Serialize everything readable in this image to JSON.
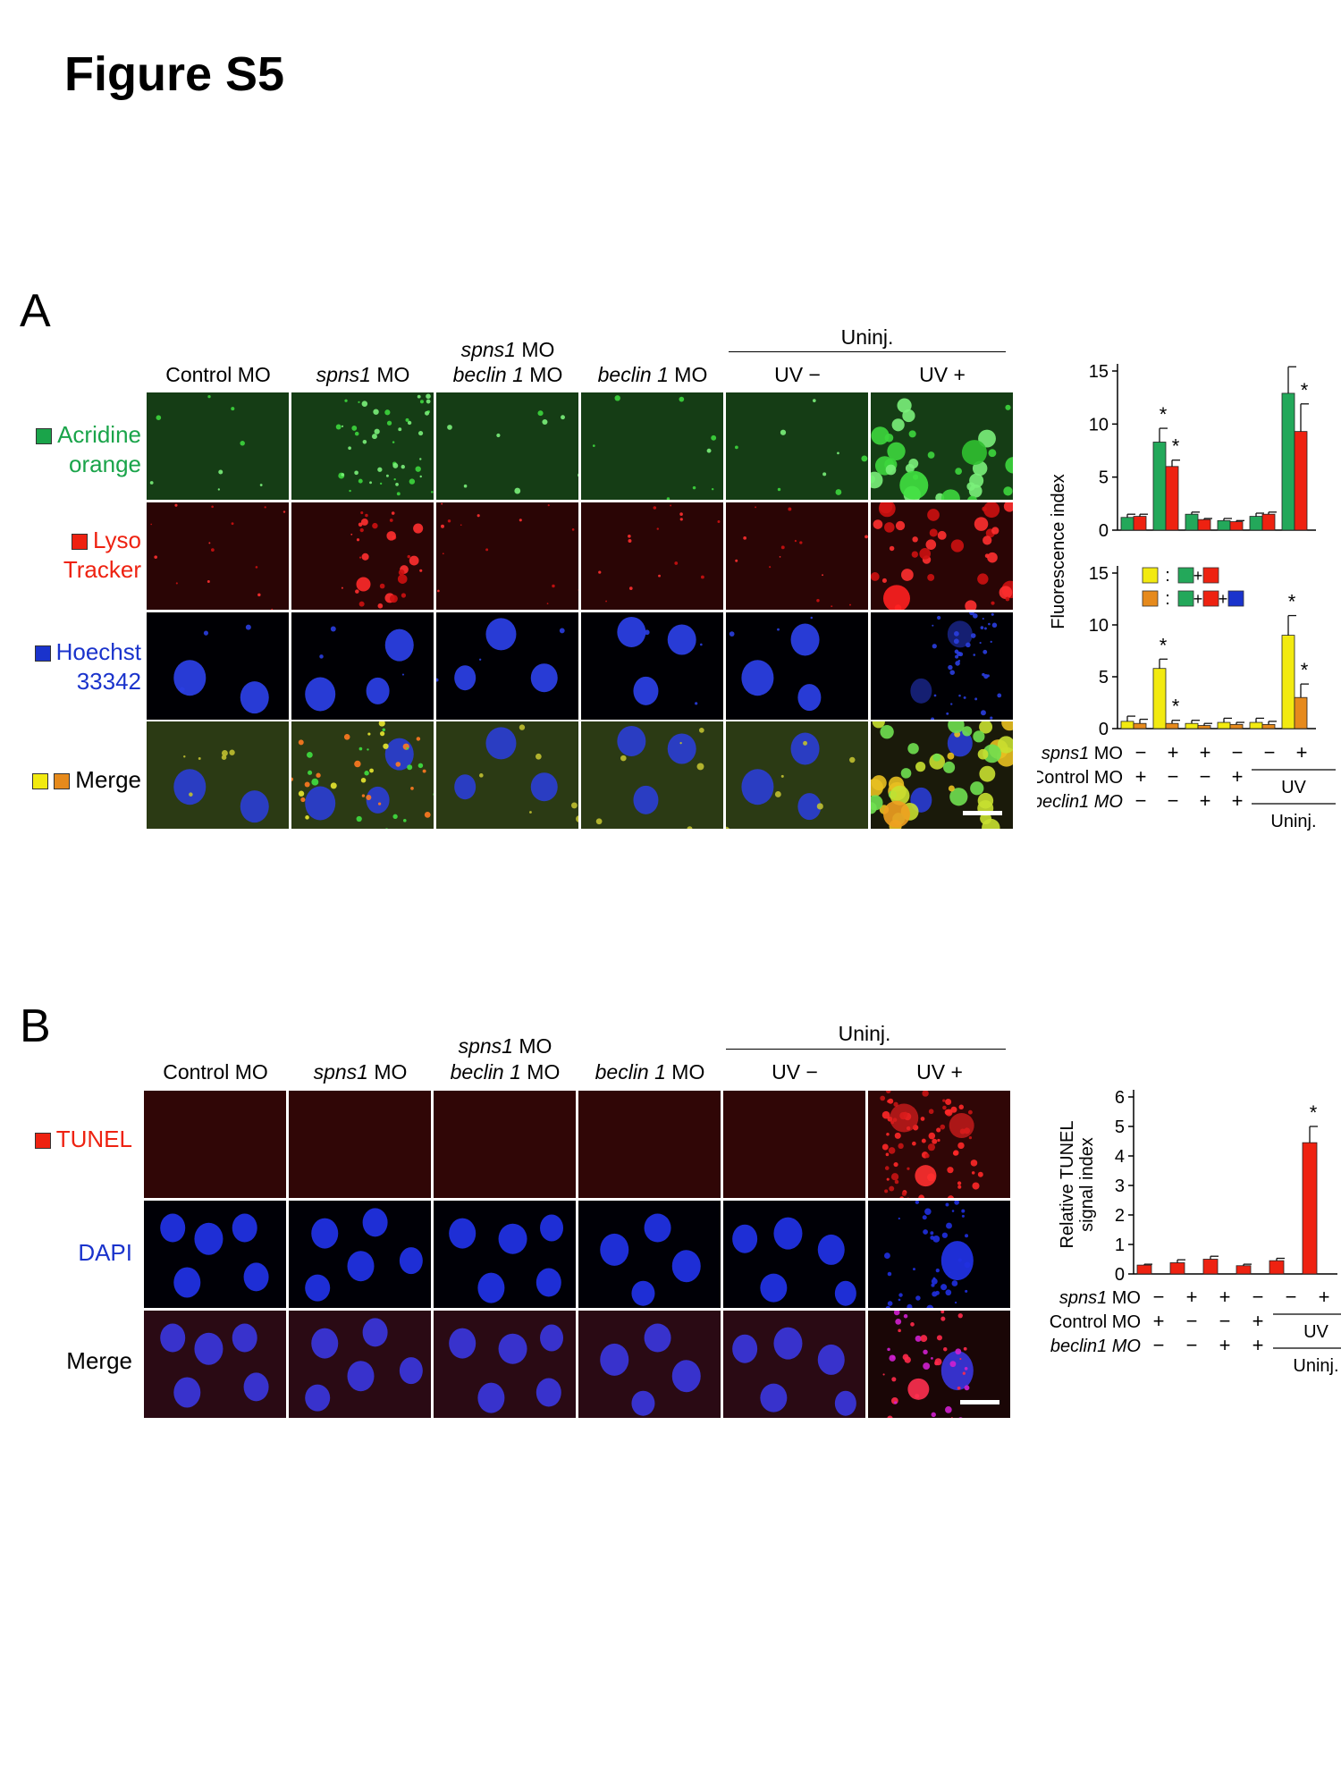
{
  "figure_title": "Figure S5",
  "colors": {
    "green": "#1aa44a",
    "red": "#ee2211",
    "blue": "#1a33cc",
    "yellow": "#f2ea10",
    "orange": "#e68a1c",
    "bar_green": "#23a85a"
  },
  "panelA": {
    "letter": "A",
    "uninj_label": "Uninj.",
    "columns": [
      {
        "l1": "",
        "l2a": "",
        "l2b": "Control MO"
      },
      {
        "l1": "",
        "l2a": "spns1",
        "l2b": " MO"
      },
      {
        "l1": "spns1 MO",
        "l2a": "beclin 1",
        "l2b": " MO"
      },
      {
        "l1": "",
        "l2a": "beclin 1",
        "l2b": " MO"
      },
      {
        "l1": "",
        "l2a": "",
        "l2b": "UV −"
      },
      {
        "l1": "",
        "l2a": "",
        "l2b": "UV +"
      }
    ],
    "rows": [
      {
        "line1": "Acridine",
        "line2": "orange"
      },
      {
        "line1": "Lyso",
        "line2": "Tracker"
      },
      {
        "line1": "Hoechst",
        "line2": "33342"
      },
      {
        "line1": "Merge",
        "line2": ""
      }
    ]
  },
  "panelB": {
    "letter": "B",
    "uninj_label": "Uninj.",
    "columns": [
      {
        "l1": "",
        "l2a": "",
        "l2b": "Control MO"
      },
      {
        "l1": "",
        "l2a": "spns1",
        "l2b": " MO"
      },
      {
        "l1": "spns1 MO",
        "l2a": "beclin 1",
        "l2b": " MO"
      },
      {
        "l1": "",
        "l2a": "beclin 1",
        "l2b": " MO"
      },
      {
        "l1": "",
        "l2a": "",
        "l2b": "UV −"
      },
      {
        "l1": "",
        "l2a": "",
        "l2b": "UV +"
      }
    ],
    "rows": [
      {
        "label": "TUNEL"
      },
      {
        "label": "DAPI"
      },
      {
        "label": "Merge"
      }
    ]
  },
  "chart_data": [
    {
      "type": "bar",
      "title": "",
      "ylabel": "Fluorescence index",
      "ylim": [
        0,
        15
      ],
      "yticks": [
        0,
        5,
        10,
        15
      ],
      "series": [
        {
          "name": "Acridine orange",
          "color": "#23a85a",
          "values": [
            1.2,
            8.3,
            1.5,
            0.9,
            1.3,
            12.9
          ],
          "errors": [
            0.3,
            1.3,
            0.2,
            0.2,
            0.3,
            2.5
          ]
        },
        {
          "name": "LysoTracker",
          "color": "#ee2211",
          "values": [
            1.3,
            6.0,
            1.0,
            0.8,
            1.5,
            9.3
          ],
          "errors": [
            0.2,
            0.6,
            0.1,
            0.1,
            0.2,
            2.6
          ]
        }
      ],
      "significance": [
        false,
        true,
        false,
        false,
        false,
        true
      ]
    },
    {
      "type": "bar",
      "title": "",
      "ylabel": "Fluorescence index",
      "ylim": [
        0,
        15
      ],
      "yticks": [
        0,
        5,
        10,
        15
      ],
      "legend": [
        {
          "sep": ":",
          "swatches": [
            "#23a85a",
            "#ee2211"
          ]
        },
        {
          "sep": ":",
          "swatches": [
            "#23a85a",
            "#ee2211",
            "#1a33cc"
          ]
        }
      ],
      "series": [
        {
          "name": "Acridine orange + LysoTracker",
          "color": "#f2ea10",
          "values": [
            0.7,
            5.8,
            0.5,
            0.6,
            0.6,
            9.0
          ],
          "errors": [
            0.5,
            0.9,
            0.3,
            0.4,
            0.4,
            1.9
          ]
        },
        {
          "name": "Acridine orange + LysoTracker + Hoechst",
          "color": "#e68a1c",
          "values": [
            0.5,
            0.5,
            0.3,
            0.4,
            0.4,
            3.0
          ],
          "errors": [
            0.4,
            0.3,
            0.2,
            0.2,
            0.3,
            1.3
          ]
        }
      ],
      "significance": [
        false,
        true,
        false,
        false,
        false,
        true
      ]
    },
    {
      "type": "bar",
      "title": "",
      "ylabel": "Relative TUNEL signal index",
      "ylim": [
        0,
        6
      ],
      "yticks": [
        0,
        1,
        2,
        3,
        4,
        5,
        6
      ],
      "series": [
        {
          "name": "TUNEL",
          "color": "#ee2211",
          "values": [
            0.3,
            0.38,
            0.5,
            0.28,
            0.45,
            4.45
          ],
          "errors": [
            0.03,
            0.1,
            0.1,
            0.05,
            0.08,
            0.55
          ]
        }
      ],
      "significance": [
        false,
        false,
        false,
        false,
        false,
        true
      ]
    }
  ],
  "conditionsA": {
    "rows": [
      {
        "label": "spns1 MO",
        "signs": [
          "−",
          "+",
          "+",
          "−",
          "−",
          "+"
        ]
      },
      {
        "label": "Control MO",
        "signs": [
          "+",
          "−",
          "−",
          "+",
          "",
          ""
        ]
      },
      {
        "label": "beclin1 MO",
        "signs": [
          "−",
          "−",
          "+",
          "+",
          "",
          ""
        ]
      }
    ],
    "uv_label": "UV",
    "uninj_label": "Uninj."
  },
  "conditionsB": {
    "rows": [
      {
        "label": "spns1 MO",
        "signs": [
          "−",
          "+",
          "+",
          "−",
          "−",
          "+"
        ]
      },
      {
        "label": "Control MO",
        "signs": [
          "+",
          "−",
          "−",
          "+",
          "",
          ""
        ]
      },
      {
        "label": "beclin1 MO",
        "signs": [
          "−",
          "−",
          "+",
          "+",
          "",
          ""
        ]
      }
    ],
    "uv_label": "UV",
    "uninj_label": "Uninj."
  },
  "significance_mark": "*"
}
